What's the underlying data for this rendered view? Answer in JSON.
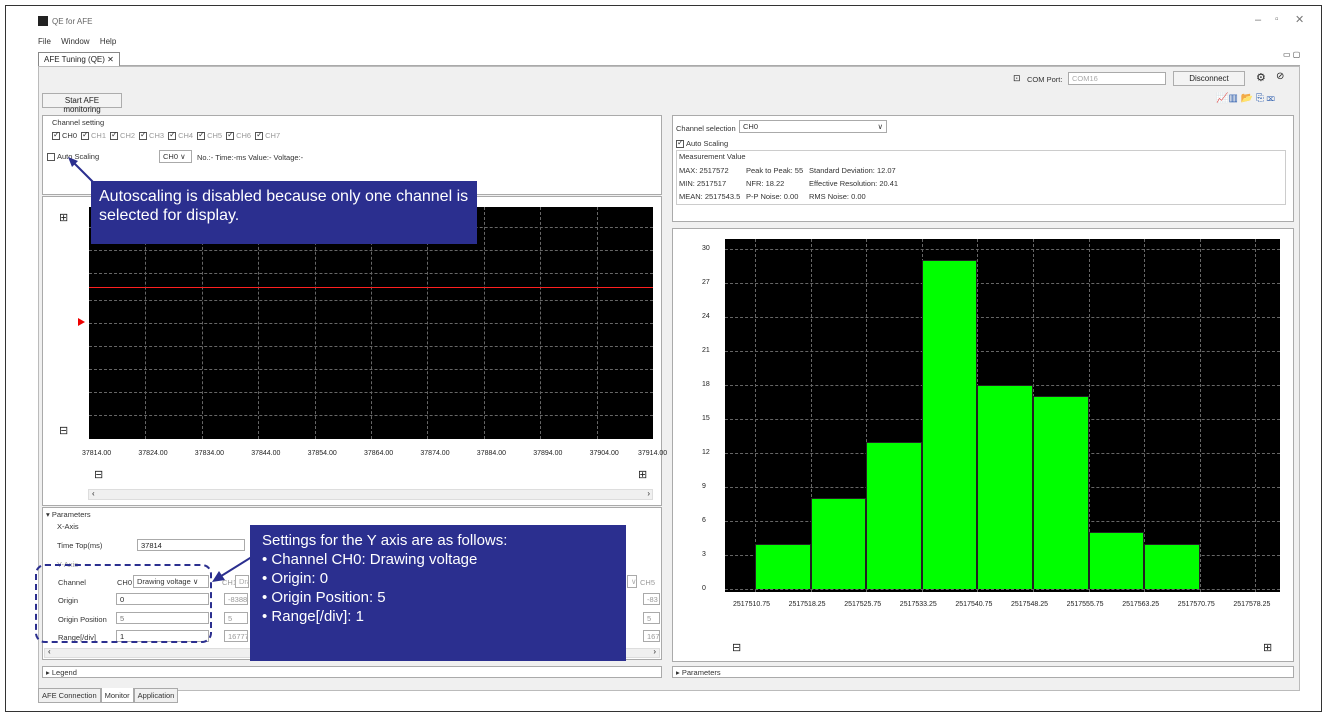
{
  "window": {
    "title": "QE for AFE",
    "menu": [
      "File",
      "Window",
      "Help"
    ]
  },
  "doc_tab": {
    "label": "AFE Tuning (QE)"
  },
  "toolbar": {
    "com_label": "COM Port:",
    "com_value": "COM16",
    "disconnect": "Disconnect"
  },
  "start_button": "Start AFE monitoring",
  "channel_setting": {
    "title": "Channel setting",
    "channels": [
      {
        "label": "CH0",
        "checked": true
      },
      {
        "label": "CH1",
        "checked": true
      },
      {
        "label": "CH2",
        "checked": true
      },
      {
        "label": "CH3",
        "checked": true
      },
      {
        "label": "CH4",
        "checked": true
      },
      {
        "label": "CH5",
        "checked": true
      },
      {
        "label": "CH6",
        "checked": true
      },
      {
        "label": "CH7",
        "checked": true
      }
    ],
    "auto_scaling": "Auto Scaling",
    "channel_select": "CH0",
    "info": "No.:- Time:-ms Value:- Voltage:-"
  },
  "callout_top": "Autoscaling is disabled because only one channel is selected for display.",
  "time_plot": {
    "x_ticks": [
      "37814.00",
      "37824.00",
      "37834.00",
      "37844.00",
      "37854.00",
      "37864.00",
      "37874.00",
      "37884.00",
      "37894.00",
      "37904.00",
      "37914.00"
    ]
  },
  "parameters": {
    "header": "Parameters",
    "x_axis": "X-Axis",
    "time_top_label": "Time Top(ms)",
    "time_top_value": "37814",
    "y_axis": "Y-Axis",
    "channel_label": "Channel",
    "ch0": "CH0",
    "ch0_mode": "Drawing voltage",
    "ch1": "CH1",
    "ch1_mode": "Dra",
    "ch5": "CH5",
    "origin_label": "Origin",
    "origin_value": "0",
    "origin_ch1": "-83886",
    "origin_ch5": "-83",
    "origin_pos_label": "Origin Position",
    "origin_pos_value": "5",
    "origin_pos_ch1": "5",
    "origin_pos_ch5": "5",
    "range_label": "Range[/div]",
    "range_value": "1",
    "range_ch1": "167772",
    "range_ch5": "167"
  },
  "legend": "Legend",
  "callout_bottom": {
    "title": "Settings for the Y axis are as follows:",
    "items": [
      "Channel CH0: Drawing voltage",
      "Origin: 0",
      "Origin Position: 5",
      "Range[/div]: 1"
    ]
  },
  "right": {
    "channel_selection_label": "Channel selection",
    "channel_selection_value": "CH0",
    "auto_scaling": "Auto Scaling",
    "measurement_title": "Measurement Value",
    "m_row1": [
      "MAX: 2517572",
      "Peak to Peak: 55",
      "Standard Deviation: 12.07"
    ],
    "m_row2": [
      "MIN: 2517517",
      "NFR: 18.22",
      "Effective Resolution: 20.41"
    ],
    "m_row3": [
      "MEAN: 2517543.5",
      "P-P Noise: 0.00",
      "RMS Noise: 0.00"
    ],
    "parameters": "Parameters"
  },
  "bottom_tabs": [
    "AFE Connection",
    "Monitor",
    "Application"
  ],
  "chart_data": {
    "type": "bar",
    "categories": [
      "2517510.75",
      "2517518.25",
      "2517525.75",
      "2517533.25",
      "2517540.75",
      "2517548.25",
      "2517555.75",
      "2517563.25",
      "2517570.75",
      "2517578.25"
    ],
    "values": [
      0,
      4,
      8,
      13,
      29,
      18,
      17,
      5,
      4,
      0
    ],
    "y_ticks": [
      "0",
      "3",
      "6",
      "9",
      "12",
      "15",
      "18",
      "21",
      "24",
      "27",
      "30"
    ],
    "ylim": [
      0,
      30
    ],
    "bar_color": "#00ff00",
    "background": "#000000"
  }
}
